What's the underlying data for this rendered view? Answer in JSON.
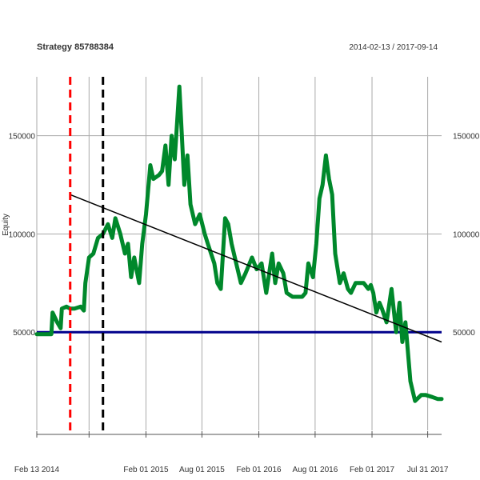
{
  "chart_data": {
    "type": "line",
    "title": "Strategy 85788384",
    "date_range": "2014-02-13 / 2017-09-14",
    "ylabel": "Equity",
    "ylim": [
      0,
      180000
    ],
    "grid": true,
    "x_tick_labels": [
      "Feb 13 2014",
      "Feb 01 2015",
      "Aug 01 2015",
      "Feb 01 2016",
      "Aug 01 2016",
      "Feb 01 2017",
      "Jul 31 2017"
    ],
    "y_tick_labels": [
      "50000",
      "100000",
      "150000"
    ],
    "y_tick_values": [
      50000,
      100000,
      150000
    ],
    "reference_line": {
      "value": 50000,
      "color": "#00008b"
    },
    "trend_line": {
      "x": [
        "2014-06-01",
        "2017-09-14"
      ],
      "y": [
        120000,
        45000
      ],
      "color": "#000000"
    },
    "vlines": [
      {
        "x": "2014-06-01",
        "color": "#ff0000"
      },
      {
        "x": "2014-09-15",
        "color": "#000000"
      }
    ],
    "series": [
      {
        "color": "#00882b",
        "x": [
          "2014-02-13",
          "2014-03-15",
          "2014-04-01",
          "2014-04-05",
          "2014-04-20",
          "2014-05-01",
          "2014-05-05",
          "2014-05-20",
          "2014-06-01",
          "2014-06-15",
          "2014-07-05",
          "2014-07-15",
          "2014-07-20",
          "2014-08-01",
          "2014-08-15",
          "2014-08-30",
          "2014-09-15",
          "2014-10-01",
          "2014-10-15",
          "2014-10-25",
          "2014-11-10",
          "2014-11-25",
          "2014-12-05",
          "2014-12-15",
          "2014-12-25",
          "2015-01-10",
          "2015-01-20",
          "2015-02-01",
          "2015-02-15",
          "2015-02-25",
          "2015-03-15",
          "2015-03-25",
          "2015-04-05",
          "2015-04-15",
          "2015-04-25",
          "2015-05-05",
          "2015-05-12",
          "2015-05-20",
          "2015-05-25",
          "2015-06-05",
          "2015-06-15",
          "2015-06-25",
          "2015-07-10",
          "2015-07-25",
          "2015-08-10",
          "2015-08-20",
          "2015-09-10",
          "2015-09-20",
          "2015-10-01",
          "2015-10-15",
          "2015-10-25",
          "2015-11-05",
          "2015-11-20",
          "2015-12-05",
          "2015-12-20",
          "2016-01-10",
          "2016-01-25",
          "2016-02-10",
          "2016-02-25",
          "2016-03-15",
          "2016-03-25",
          "2016-04-05",
          "2016-04-20",
          "2016-05-01",
          "2016-05-20",
          "2016-06-10",
          "2016-06-20",
          "2016-07-01",
          "2016-07-10",
          "2016-07-25",
          "2016-08-05",
          "2016-08-15",
          "2016-08-25",
          "2016-09-05",
          "2016-09-15",
          "2016-09-25",
          "2016-10-05",
          "2016-10-20",
          "2016-11-01",
          "2016-11-15",
          "2016-11-25",
          "2016-12-10",
          "2016-12-20",
          "2017-01-05",
          "2017-01-20",
          "2017-01-28",
          "2017-02-05",
          "2017-02-15",
          "2017-02-25",
          "2017-03-05",
          "2017-03-20",
          "2017-04-05",
          "2017-04-20",
          "2017-05-01",
          "2017-05-10",
          "2017-05-20",
          "2017-06-05",
          "2017-06-20",
          "2017-07-10",
          "2017-07-25",
          "2017-08-15",
          "2017-09-01",
          "2017-09-14"
        ],
        "y": [
          49000,
          49000,
          49000,
          60000,
          55000,
          52000,
          62000,
          63000,
          62000,
          62000,
          63000,
          61000,
          75000,
          88000,
          90000,
          98000,
          100000,
          105000,
          98000,
          108000,
          100000,
          90000,
          95000,
          78000,
          88000,
          75000,
          95000,
          110000,
          135000,
          128000,
          130000,
          132000,
          145000,
          125000,
          150000,
          138000,
          155000,
          175000,
          160000,
          125000,
          140000,
          115000,
          105000,
          110000,
          100000,
          95000,
          85000,
          75000,
          72000,
          108000,
          105000,
          95000,
          85000,
          75000,
          80000,
          88000,
          82000,
          85000,
          70000,
          90000,
          75000,
          85000,
          80000,
          70000,
          68000,
          68000,
          68000,
          70000,
          85000,
          78000,
          95000,
          118000,
          125000,
          140000,
          128000,
          120000,
          90000,
          75000,
          80000,
          72000,
          70000,
          75000,
          75000,
          75000,
          72000,
          74000,
          70000,
          60000,
          65000,
          62000,
          55000,
          72000,
          50000,
          65000,
          45000,
          55000,
          25000,
          15000,
          18000,
          18000,
          17000,
          16000,
          16000
        ]
      }
    ]
  }
}
